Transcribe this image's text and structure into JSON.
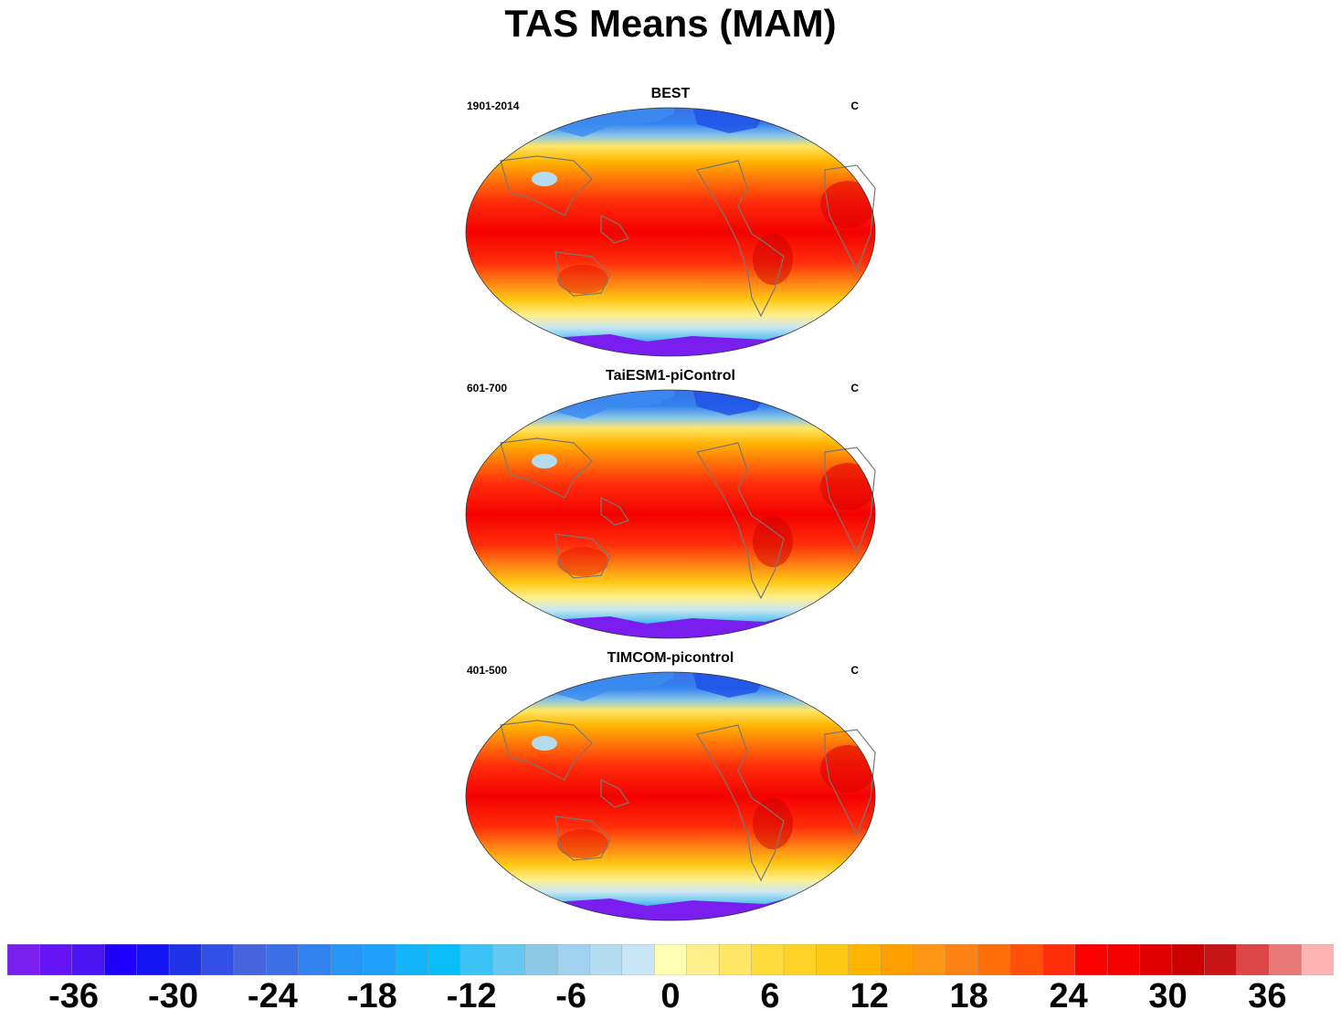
{
  "title": "TAS Means (MAM)",
  "panels": [
    {
      "title": "BEST",
      "period": "1901-2014",
      "units": "C"
    },
    {
      "title": "TaiESM1-piControl",
      "period": "601-700",
      "units": "C"
    },
    {
      "title": "TIMCOM-picontrol",
      "period": "401-500",
      "units": "C"
    }
  ],
  "colorbar": {
    "colors": [
      "#7a1ef0",
      "#6414f5",
      "#4a14f5",
      "#1e00ff",
      "#1414f0",
      "#1e32e6",
      "#3250e6",
      "#4664dc",
      "#3c6ee6",
      "#3282f0",
      "#2896f5",
      "#1ea0fa",
      "#14b4fa",
      "#0abefa",
      "#3cc3f5",
      "#64c8f0",
      "#8cc8e6",
      "#a0d2f0",
      "#b4dcf0",
      "#c8e6f5",
      "#ffffb4",
      "#fff08c",
      "#ffe664",
      "#ffdc3c",
      "#ffd228",
      "#ffc814",
      "#ffb400",
      "#ffa000",
      "#ff9614",
      "#ff8214",
      "#ff6e0a",
      "#ff500a",
      "#ff2d0a",
      "#ff0000",
      "#f50000",
      "#e10000",
      "#cd0000",
      "#c81414",
      "#dc4646",
      "#eb7878",
      "#ffb4b4"
    ],
    "tick_labels": [
      "-36",
      "-30",
      "-24",
      "-18",
      "-12",
      "-6",
      "0",
      "6",
      "12",
      "18",
      "24",
      "30",
      "36"
    ],
    "tick_values": [
      -36,
      -30,
      -24,
      -18,
      -12,
      -6,
      0,
      6,
      12,
      18,
      24,
      30,
      36
    ],
    "min": -40,
    "max": 40
  }
}
